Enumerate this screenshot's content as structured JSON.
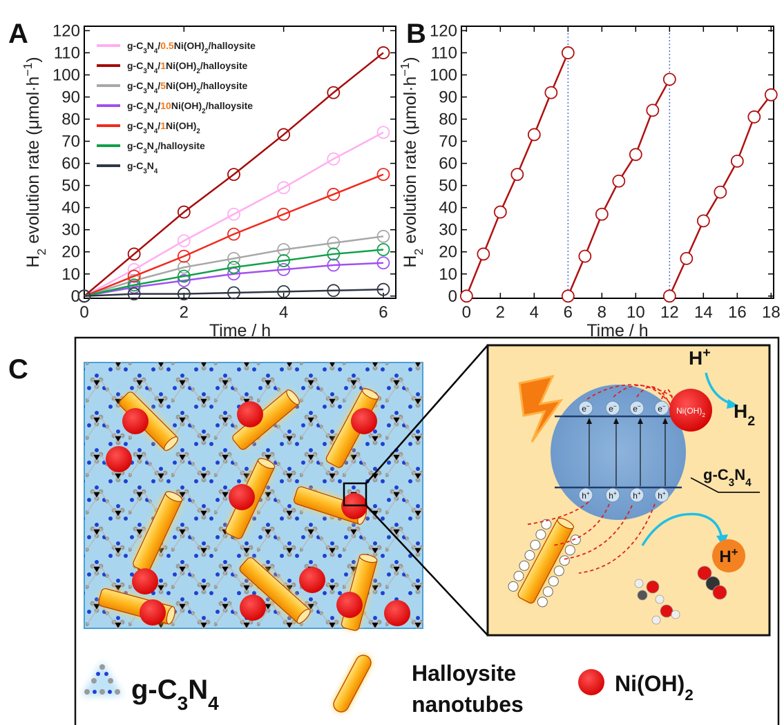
{
  "panel_labels": [
    "A",
    "B",
    "C"
  ],
  "chart_data": [
    {
      "type": "line",
      "x_label": "Time / h",
      "y_label": "H2 evolution rate (μmol·h−1)",
      "x": [
        0,
        1,
        2,
        3,
        4,
        5,
        6
      ],
      "xlim": [
        0,
        6.25
      ],
      "xticks": [
        0,
        2,
        4,
        6
      ],
      "ylim": [
        -1,
        122
      ],
      "yticks": [
        0,
        10,
        20,
        30,
        40,
        50,
        60,
        70,
        80,
        90,
        100,
        110,
        120
      ],
      "legend": "upper left",
      "series": [
        {
          "name": "g-C3N4/0.5Ni(OH)2/halloysite",
          "color": "#ffaef0",
          "values": [
            0,
            12,
            25,
            37,
            49,
            62,
            74
          ]
        },
        {
          "name": "g-C3N4/1Ni(OH)2/halloysite",
          "color": "#a50a0a",
          "values": [
            0,
            19,
            38,
            55,
            73,
            92,
            110
          ]
        },
        {
          "name": "g-C3N4/5Ni(OH)2/halloysite",
          "color": "#a8a8a8",
          "values": [
            0,
            7,
            13,
            17,
            21,
            24,
            27
          ]
        },
        {
          "name": "g-C3N4/10Ni(OH)2/halloysite",
          "color": "#a050f0",
          "values": [
            0,
            4,
            7,
            10,
            12,
            14,
            15
          ]
        },
        {
          "name": "g-C3N4/1Ni(OH)2",
          "color": "#f02a1e",
          "values": [
            0,
            9,
            18,
            28,
            37,
            46,
            55
          ]
        },
        {
          "name": "g-C3N4/halloysite",
          "color": "#12a04a",
          "values": [
            0,
            5,
            9,
            13,
            16,
            19,
            21
          ]
        },
        {
          "name": "g-C3N4",
          "color": "#303845",
          "values": [
            0,
            1,
            1,
            1.5,
            2,
            2.5,
            3
          ]
        }
      ]
    },
    {
      "type": "line",
      "x_label": "Time / h",
      "y_label": "H2 evolution rate (μmol·h−1)",
      "xlim": [
        -0.3,
        18.15
      ],
      "xticks": [
        0,
        2,
        4,
        6,
        8,
        10,
        12,
        14,
        16,
        18
      ],
      "ylim": [
        -1,
        122
      ],
      "yticks": [
        0,
        10,
        20,
        30,
        40,
        50,
        60,
        70,
        80,
        90,
        100,
        110,
        120
      ],
      "vlines": [
        6,
        12
      ],
      "vline_color": "#4a6fd6",
      "series": [
        {
          "color": "#b01010",
          "x": [
            0,
            1,
            2,
            3,
            4,
            5,
            6
          ],
          "values": [
            0,
            19,
            38,
            55,
            73,
            92,
            110
          ]
        },
        {
          "color": "#b01010",
          "x": [
            6,
            7,
            8,
            9,
            10,
            11,
            12
          ],
          "values": [
            0,
            18,
            37,
            52,
            64,
            84,
            98
          ]
        },
        {
          "color": "#b01010",
          "x": [
            12,
            13,
            14,
            15,
            16,
            17,
            18
          ],
          "values": [
            0,
            17,
            34,
            47,
            61,
            81,
            91
          ]
        }
      ]
    }
  ],
  "panel_c": {
    "scheme": {
      "cocatalyst": "Ni(OH)2",
      "proton_in": "H+",
      "product": "H2",
      "electrons": [
        "e−",
        "e−",
        "e−",
        "e−"
      ],
      "holes": [
        "h+",
        "h+",
        "h+",
        "h+"
      ],
      "semiconductor": "g-C3N4",
      "proton_out": "H+"
    },
    "legend": {
      "g_c3n4": "g-C3N4",
      "halloysite": [
        "Halloysite",
        "nanotubes"
      ],
      "nioh2": "Ni(OH)2"
    }
  }
}
